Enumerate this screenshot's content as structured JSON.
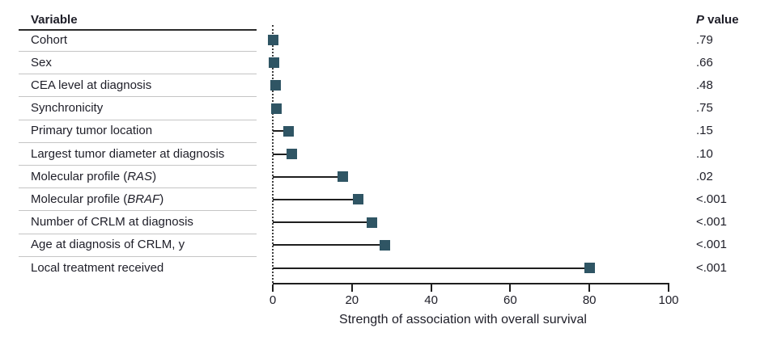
{
  "headers": {
    "variable": "Variable",
    "p_italic": "P",
    "p_rest": " value"
  },
  "colors": {
    "marker": "#2F5564",
    "text": "#1E1E28",
    "separator": "#C5C5C5",
    "axis": "#1F1F1F",
    "header_rule": "#2B2B2B"
  },
  "chart_data": {
    "type": "scatter",
    "variant": "horizontal-lollipop",
    "title": "",
    "xlabel": "Strength of association with overall survival",
    "xlim": [
      0,
      100
    ],
    "x_ticks": [
      0,
      20,
      40,
      60,
      80,
      100
    ],
    "marker": "square",
    "grid": false,
    "legend": "none",
    "categories": [
      "Cohort",
      "Sex",
      "CEA level at diagnosis",
      "Synchronicity",
      "Primary tumor location",
      "Largest tumor diameter at diagnosis",
      "Molecular profile (RAS)",
      "Molecular profile (BRAF)",
      "Number of CRLM at diagnosis",
      "Age at diagnosis of CRLM, y",
      "Local treatment received"
    ],
    "values": [
      0.2,
      0.4,
      0.7,
      1,
      4,
      4.8,
      17.7,
      21.6,
      25,
      28.3,
      80
    ],
    "p_values": [
      ".79",
      ".66",
      ".48",
      ".75",
      ".15",
      ".10",
      ".02",
      "<.001",
      "<.001",
      "<.001",
      "<.001"
    ],
    "rows": [
      {
        "segments": [
          {
            "t": "Cohort",
            "i": false
          }
        ],
        "value": 0.2,
        "p": ".79"
      },
      {
        "segments": [
          {
            "t": "Sex",
            "i": false
          }
        ],
        "value": 0.4,
        "p": ".66"
      },
      {
        "segments": [
          {
            "t": "CEA level at diagnosis",
            "i": false
          }
        ],
        "value": 0.7,
        "p": ".48"
      },
      {
        "segments": [
          {
            "t": "Synchronicity",
            "i": false
          }
        ],
        "value": 1,
        "p": ".75"
      },
      {
        "segments": [
          {
            "t": "Primary tumor location",
            "i": false
          }
        ],
        "value": 4,
        "p": ".15"
      },
      {
        "segments": [
          {
            "t": "Largest tumor diameter at diagnosis",
            "i": false
          }
        ],
        "value": 4.8,
        "p": ".10"
      },
      {
        "segments": [
          {
            "t": "Molecular profile (",
            "i": false
          },
          {
            "t": "RAS",
            "i": true
          },
          {
            "t": ")",
            "i": false
          }
        ],
        "value": 17.7,
        "p": ".02"
      },
      {
        "segments": [
          {
            "t": "Molecular profile (",
            "i": false
          },
          {
            "t": "BRAF",
            "i": true
          },
          {
            "t": ")",
            "i": false
          }
        ],
        "value": 21.6,
        "p": "<.001"
      },
      {
        "segments": [
          {
            "t": "Number of CRLM at diagnosis",
            "i": false
          }
        ],
        "value": 25,
        "p": "<.001"
      },
      {
        "segments": [
          {
            "t": "Age at diagnosis of CRLM, y",
            "i": false
          }
        ],
        "value": 28.3,
        "p": "<.001"
      },
      {
        "segments": [
          {
            "t": "Local treatment received",
            "i": false
          }
        ],
        "value": 80,
        "p": "<.001"
      }
    ]
  }
}
